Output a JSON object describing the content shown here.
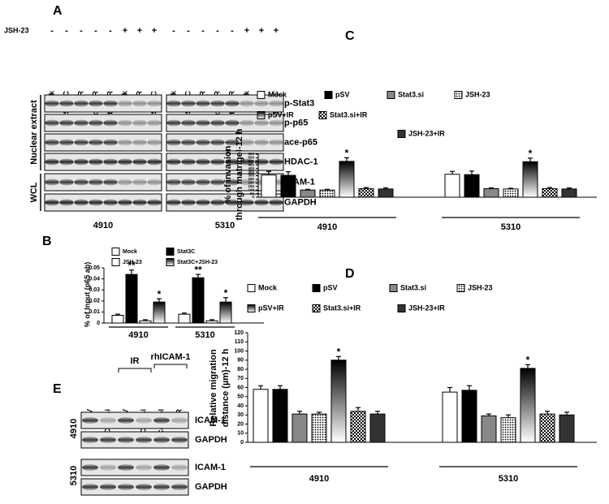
{
  "chart_data": [
    {
      "type": "bar",
      "label": "B",
      "y_label": [
        "% of Input (p65 ab)"
      ],
      "categories": [
        "4910",
        "5310"
      ],
      "ylim": [
        0,
        0.05
      ],
      "yticks": [
        0,
        0.01,
        0.02,
        0.03,
        0.04,
        0.05
      ],
      "series": [
        {
          "name": "Mock",
          "color": "#ffffff",
          "pattern": "solid",
          "values": [
            0.007,
            0.008
          ],
          "errors": [
            0.001,
            0.001
          ]
        },
        {
          "name": "Stat3C",
          "color": "#000000",
          "pattern": "solid",
          "values": [
            0.044,
            0.041
          ],
          "errors": [
            0.004,
            0.003
          ],
          "significance": [
            "**",
            "**"
          ]
        },
        {
          "name": "JSH-23",
          "color": "#ffffff",
          "pattern": "solid",
          "values": [
            0.002,
            0.002
          ],
          "errors": [
            0.001,
            0.001
          ]
        },
        {
          "name": "Stat3C+JSH-23",
          "color": "#000000",
          "pattern": "gradient",
          "values": [
            0.019,
            0.019
          ],
          "errors": [
            0.003,
            0.004
          ],
          "significance": [
            "*",
            "*"
          ]
        }
      ]
    },
    {
      "type": "bar",
      "label": "C",
      "y_label": [
        "% of invasion",
        "through matrigel-12 h"
      ],
      "categories": [
        "4910",
        "5310"
      ],
      "ylim": [
        0,
        600
      ],
      "yticks": [
        0,
        50,
        100,
        150,
        200,
        250,
        300,
        350,
        400,
        450,
        500,
        550,
        600
      ],
      "series": [
        {
          "name": "Mock",
          "color": "#ffffff",
          "pattern": "solid",
          "values": [
            310,
            320
          ],
          "errors": [
            50,
            40
          ]
        },
        {
          "name": "pSV",
          "color": "#000000",
          "pattern": "solid",
          "values": [
            305,
            315
          ],
          "errors": [
            50,
            50
          ]
        },
        {
          "name": "Stat3.si",
          "color": "#888888",
          "pattern": "solid",
          "values": [
            100,
            120
          ],
          "errors": [
            10,
            10
          ]
        },
        {
          "name": "JSH-23",
          "color": "#000000",
          "pattern": "dots",
          "values": [
            100,
            115
          ],
          "errors": [
            10,
            10
          ]
        },
        {
          "name": "pSV+IR",
          "color": "#000000",
          "pattern": "gradient",
          "values": [
            500,
            495
          ],
          "errors": [
            50,
            50
          ],
          "significance": [
            "*",
            "*"
          ]
        },
        {
          "name": "Stat3.si+IR",
          "color": "#000000",
          "pattern": "checker",
          "values": [
            120,
            120
          ],
          "errors": [
            15,
            15
          ]
        },
        {
          "name": "JSH-23+IR",
          "color": "#333333",
          "pattern": "solid",
          "values": [
            115,
            115
          ],
          "errors": [
            15,
            15
          ]
        }
      ]
    },
    {
      "type": "bar",
      "label": "D",
      "y_label": [
        "Relative migration",
        "distance (µm)-12 h"
      ],
      "categories": [
        "4910",
        "5310"
      ],
      "ylim": [
        0,
        120
      ],
      "yticks": [
        0,
        10,
        20,
        30,
        40,
        50,
        60,
        70,
        80,
        90,
        100,
        110,
        120
      ],
      "series": [
        {
          "name": "Mock",
          "color": "#ffffff",
          "pattern": "solid",
          "values": [
            58,
            55
          ],
          "errors": [
            4,
            5
          ]
        },
        {
          "name": "pSV",
          "color": "#000000",
          "pattern": "solid",
          "values": [
            58,
            57
          ],
          "errors": [
            4,
            5
          ]
        },
        {
          "name": "Stat3.si",
          "color": "#888888",
          "pattern": "solid",
          "values": [
            31,
            29
          ],
          "errors": [
            3,
            2
          ]
        },
        {
          "name": "JSH-23",
          "color": "#000000",
          "pattern": "dots",
          "values": [
            31,
            27
          ],
          "errors": [
            2,
            3
          ]
        },
        {
          "name": "pSV+IR",
          "color": "#000000",
          "pattern": "gradient",
          "values": [
            90,
            81
          ],
          "errors": [
            4,
            4
          ],
          "significance": [
            "*",
            "*"
          ]
        },
        {
          "name": "Stat3.si+IR",
          "color": "#000000",
          "pattern": "checker",
          "values": [
            34,
            31
          ],
          "errors": [
            4,
            3
          ]
        },
        {
          "name": "JSH-23+IR",
          "color": "#333333",
          "pattern": "solid",
          "values": [
            31,
            30
          ],
          "errors": [
            3,
            3
          ]
        }
      ]
    }
  ],
  "blot_a": {
    "label": "A",
    "treatment": "JSH-23",
    "panels": [
      {
        "cell_line": "4910",
        "lanes": [
          "Mock",
          "Stat3C",
          "IR",
          "Mock+IR",
          "Stat3C+IR",
          "Mock",
          "IR",
          "Stat3C"
        ],
        "signs": [
          "-",
          "-",
          "-",
          "-",
          "-",
          "+",
          "+",
          "+"
        ]
      },
      {
        "cell_line": "5310",
        "lanes": [
          "Mock",
          "Stat3C",
          "IR",
          "Mock+IR",
          "Stat3C+IR",
          "Mock",
          "IR",
          "Stat3C"
        ],
        "signs": [
          "-",
          "-",
          "-",
          "-",
          "-",
          "+",
          "+",
          "+"
        ]
      }
    ],
    "rows": [
      "p-Stat3",
      "p-p65",
      "ace-p65",
      "HDAC-1",
      "ICAM-1",
      "GAPDH"
    ],
    "groups": [
      "Nuclear extract",
      "WCL"
    ]
  },
  "blot_e": {
    "label": "E",
    "lanes": [
      "pSV",
      "ICAM.si",
      "pSV",
      "ICAM.si",
      "Control",
      "IR"
    ],
    "brackets": [
      "IR",
      "rhICAM-1"
    ],
    "blocks": [
      {
        "cell_line": "4910",
        "rows": [
          "ICAM-1",
          "GAPDH"
        ]
      },
      {
        "cell_line": "5310",
        "rows": [
          "ICAM-1",
          "GAPDH"
        ]
      }
    ]
  }
}
